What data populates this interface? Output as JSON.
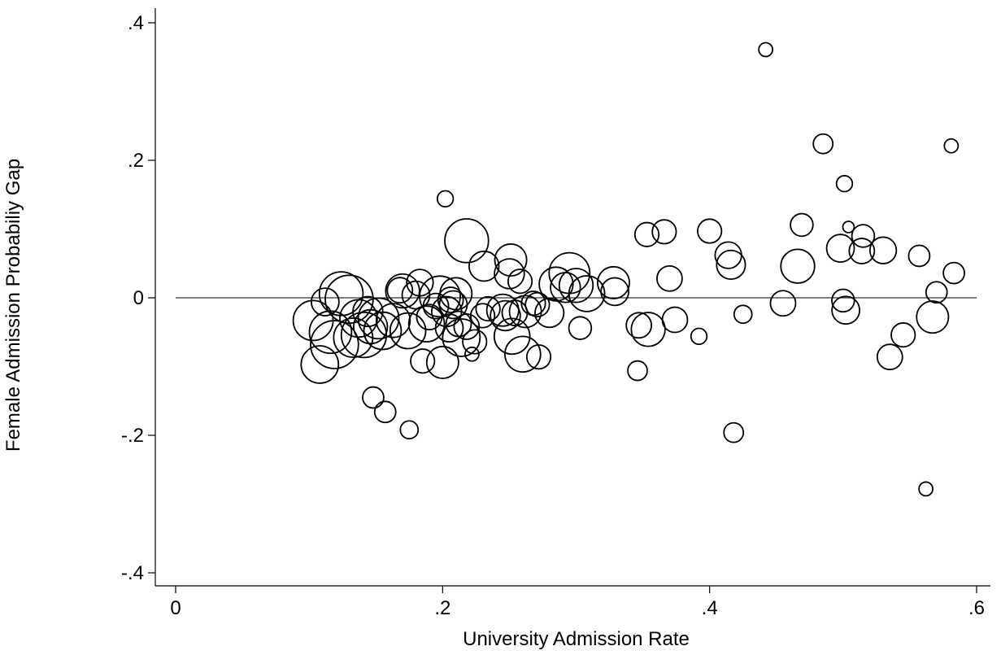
{
  "chart_data": {
    "type": "scatter",
    "title": "",
    "xlabel": "University Admission Rate",
    "ylabel": "Female Admission Probabiliy Gap",
    "xlim": [
      0,
      0.6
    ],
    "ylim": [
      -0.4,
      0.4
    ],
    "x_ticks": [
      0,
      0.2,
      0.4,
      0.6
    ],
    "x_tick_labels": [
      "0",
      ".2",
      ".4",
      ".6"
    ],
    "y_ticks": [
      -0.4,
      -0.2,
      0,
      0.2,
      0.4
    ],
    "y_tick_labels": [
      "-.4",
      "-.2",
      "0",
      ".2",
      ".4"
    ],
    "reference_line": 0,
    "grid": false,
    "legend": "none",
    "marker": "hollow circle, size weighted",
    "points": [
      {
        "x": 0.103,
        "y": -0.033,
        "w": 25
      },
      {
        "x": 0.108,
        "y": -0.097,
        "w": 22
      },
      {
        "x": 0.112,
        "y": -0.006,
        "w": 12
      },
      {
        "x": 0.116,
        "y": -0.05,
        "w": 28
      },
      {
        "x": 0.119,
        "y": -0.068,
        "w": 36
      },
      {
        "x": 0.124,
        "y": 0.006,
        "w": 30
      },
      {
        "x": 0.13,
        "y": -0.002,
        "w": 36
      },
      {
        "x": 0.133,
        "y": -0.058,
        "w": 24
      },
      {
        "x": 0.137,
        "y": -0.03,
        "w": 22
      },
      {
        "x": 0.141,
        "y": -0.054,
        "w": 32
      },
      {
        "x": 0.144,
        "y": -0.02,
        "w": 14
      },
      {
        "x": 0.146,
        "y": -0.042,
        "w": 18
      },
      {
        "x": 0.148,
        "y": -0.145,
        "w": 7
      },
      {
        "x": 0.152,
        "y": -0.03,
        "w": 26
      },
      {
        "x": 0.155,
        "y": -0.048,
        "w": 22
      },
      {
        "x": 0.157,
        "y": -0.166,
        "w": 7
      },
      {
        "x": 0.163,
        "y": -0.033,
        "w": 18
      },
      {
        "x": 0.168,
        "y": 0.011,
        "w": 10
      },
      {
        "x": 0.17,
        "y": 0.01,
        "w": 18
      },
      {
        "x": 0.174,
        "y": -0.048,
        "w": 20
      },
      {
        "x": 0.175,
        "y": -0.192,
        "w": 5
      },
      {
        "x": 0.18,
        "y": 0.004,
        "w": 12
      },
      {
        "x": 0.183,
        "y": 0.022,
        "w": 11
      },
      {
        "x": 0.185,
        "y": -0.092,
        "w": 9
      },
      {
        "x": 0.188,
        "y": -0.038,
        "w": 20
      },
      {
        "x": 0.19,
        "y": -0.028,
        "w": 10
      },
      {
        "x": 0.195,
        "y": -0.012,
        "w": 10
      },
      {
        "x": 0.198,
        "y": 0.002,
        "w": 26
      },
      {
        "x": 0.2,
        "y": -0.094,
        "w": 16
      },
      {
        "x": 0.202,
        "y": 0.144,
        "w": 4
      },
      {
        "x": 0.203,
        "y": -0.02,
        "w": 14
      },
      {
        "x": 0.205,
        "y": -0.044,
        "w": 12
      },
      {
        "x": 0.206,
        "y": -0.003,
        "w": 10
      },
      {
        "x": 0.208,
        "y": -0.01,
        "w": 12
      },
      {
        "x": 0.21,
        "y": 0.006,
        "w": 16
      },
      {
        "x": 0.212,
        "y": -0.038,
        "w": 10
      },
      {
        "x": 0.214,
        "y": -0.058,
        "w": 22
      },
      {
        "x": 0.218,
        "y": -0.042,
        "w": 10
      },
      {
        "x": 0.218,
        "y": 0.083,
        "w": 30
      },
      {
        "x": 0.222,
        "y": -0.082,
        "w": 3
      },
      {
        "x": 0.224,
        "y": -0.064,
        "w": 9
      },
      {
        "x": 0.23,
        "y": -0.026,
        "w": 9
      },
      {
        "x": 0.231,
        "y": 0.046,
        "w": 14
      },
      {
        "x": 0.234,
        "y": -0.016,
        "w": 9
      },
      {
        "x": 0.245,
        "y": -0.018,
        "w": 16
      },
      {
        "x": 0.247,
        "y": -0.026,
        "w": 14
      },
      {
        "x": 0.25,
        "y": 0.035,
        "w": 14
      },
      {
        "x": 0.251,
        "y": 0.055,
        "w": 16
      },
      {
        "x": 0.252,
        "y": -0.056,
        "w": 20
      },
      {
        "x": 0.254,
        "y": -0.022,
        "w": 10
      },
      {
        "x": 0.258,
        "y": 0.024,
        "w": 9
      },
      {
        "x": 0.26,
        "y": -0.082,
        "w": 20
      },
      {
        "x": 0.262,
        "y": -0.02,
        "w": 16
      },
      {
        "x": 0.268,
        "y": -0.008,
        "w": 9
      },
      {
        "x": 0.271,
        "y": -0.01,
        "w": 9
      },
      {
        "x": 0.272,
        "y": -0.086,
        "w": 9
      },
      {
        "x": 0.28,
        "y": -0.022,
        "w": 13
      },
      {
        "x": 0.285,
        "y": 0.02,
        "w": 18
      },
      {
        "x": 0.292,
        "y": 0.015,
        "w": 14
      },
      {
        "x": 0.295,
        "y": 0.036,
        "w": 26
      },
      {
        "x": 0.3,
        "y": 0.018,
        "w": 18
      },
      {
        "x": 0.303,
        "y": -0.044,
        "w": 8
      },
      {
        "x": 0.308,
        "y": 0.006,
        "w": 20
      },
      {
        "x": 0.328,
        "y": 0.022,
        "w": 16
      },
      {
        "x": 0.329,
        "y": 0.009,
        "w": 12
      },
      {
        "x": 0.346,
        "y": -0.106,
        "w": 6
      },
      {
        "x": 0.347,
        "y": -0.04,
        "w": 10
      },
      {
        "x": 0.353,
        "y": 0.092,
        "w": 9
      },
      {
        "x": 0.354,
        "y": -0.046,
        "w": 18
      },
      {
        "x": 0.366,
        "y": 0.096,
        "w": 9
      },
      {
        "x": 0.37,
        "y": 0.028,
        "w": 10
      },
      {
        "x": 0.374,
        "y": -0.032,
        "w": 10
      },
      {
        "x": 0.392,
        "y": -0.056,
        "w": 4
      },
      {
        "x": 0.4,
        "y": 0.097,
        "w": 9
      },
      {
        "x": 0.414,
        "y": 0.062,
        "w": 11
      },
      {
        "x": 0.416,
        "y": 0.048,
        "w": 13
      },
      {
        "x": 0.418,
        "y": -0.196,
        "w": 6
      },
      {
        "x": 0.425,
        "y": -0.024,
        "w": 5
      },
      {
        "x": 0.442,
        "y": 0.361,
        "w": 3
      },
      {
        "x": 0.455,
        "y": -0.008,
        "w": 10
      },
      {
        "x": 0.466,
        "y": 0.046,
        "w": 18
      },
      {
        "x": 0.469,
        "y": 0.106,
        "w": 8
      },
      {
        "x": 0.485,
        "y": 0.224,
        "w": 6
      },
      {
        "x": 0.498,
        "y": 0.072,
        "w": 12
      },
      {
        "x": 0.5,
        "y": -0.004,
        "w": 8
      },
      {
        "x": 0.501,
        "y": 0.166,
        "w": 4
      },
      {
        "x": 0.502,
        "y": -0.018,
        "w": 12
      },
      {
        "x": 0.504,
        "y": 0.103,
        "w": 2
      },
      {
        "x": 0.514,
        "y": 0.068,
        "w": 10
      },
      {
        "x": 0.515,
        "y": 0.09,
        "w": 8
      },
      {
        "x": 0.53,
        "y": 0.069,
        "w": 11
      },
      {
        "x": 0.535,
        "y": -0.086,
        "w": 10
      },
      {
        "x": 0.545,
        "y": -0.054,
        "w": 9
      },
      {
        "x": 0.557,
        "y": 0.061,
        "w": 7
      },
      {
        "x": 0.562,
        "y": -0.278,
        "w": 3
      },
      {
        "x": 0.567,
        "y": -0.028,
        "w": 16
      },
      {
        "x": 0.57,
        "y": 0.008,
        "w": 7
      },
      {
        "x": 0.581,
        "y": 0.221,
        "w": 3
      },
      {
        "x": 0.583,
        "y": 0.036,
        "w": 7
      }
    ]
  }
}
